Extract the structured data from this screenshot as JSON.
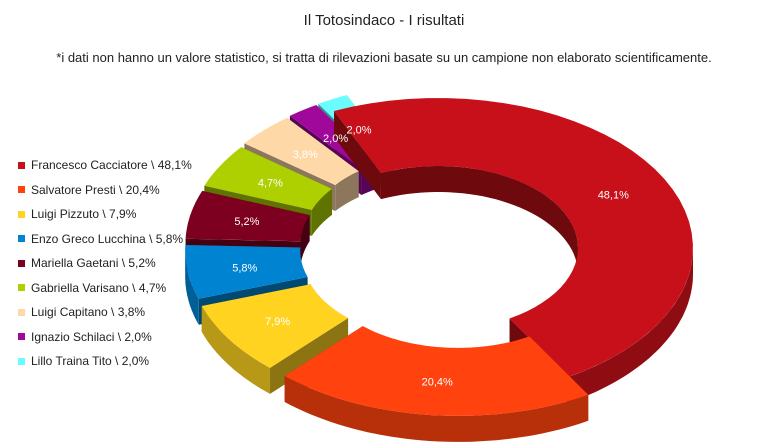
{
  "chart_data": {
    "type": "pie",
    "variant": "exploded-3d-donut",
    "title": "Il Totosindaco - I risultati",
    "subtitle": "*i dati non hanno un valore statistico, si tratta di rilevazioni basate su un campione non elaborato scientificamente.",
    "legend_position": "left",
    "slices": [
      {
        "name": "Francesco Cacciatore \\ 48,1%",
        "value": 48.1,
        "label": "48,1%",
        "color": "#c8101a"
      },
      {
        "name": "Salvatore Presti \\ 20,4%",
        "value": 20.4,
        "label": "20,4%",
        "color": "#ff420e"
      },
      {
        "name": "Luigi Pizzuto \\ 7,9%",
        "value": 7.9,
        "label": "7,9%",
        "color": "#ffd320"
      },
      {
        "name": "Enzo Greco Lucchina \\ 5,8%",
        "value": 5.8,
        "label": "5,8%",
        "color": "#0084d1"
      },
      {
        "name": "Mariella Gaetani \\ 5,2%",
        "value": 5.2,
        "label": "5,2%",
        "color": "#7e0021"
      },
      {
        "name": "Gabriella Varisano \\ 4,7%",
        "value": 4.7,
        "label": "4,7%",
        "color": "#aecf00"
      },
      {
        "name": "Luigi Capitano \\ 3,8%",
        "value": 3.8,
        "label": "3,8%",
        "color": "#ffd8a8"
      },
      {
        "name": "Ignazio Schilaci \\ 2,0%",
        "value": 2.0,
        "label": "2,0%",
        "color": "#a0089c"
      },
      {
        "name": "Lillo Traina Tito \\ 2,0%",
        "value": 2.0,
        "label": "2,0%",
        "color": "#69fdff"
      }
    ]
  }
}
